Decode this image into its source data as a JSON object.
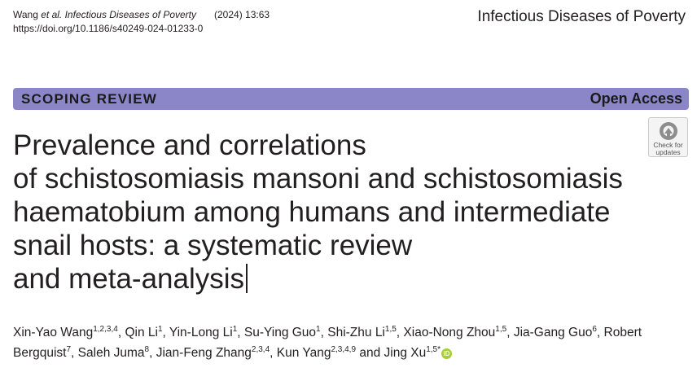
{
  "header": {
    "citation": "Wang et al. Infectious Diseases of Poverty",
    "citation_authors": "Wang ",
    "citation_etal": "et al.",
    "citation_journal": " Infectious Diseases of Poverty",
    "year_volume": "(2024) 13:63",
    "doi": "https://doi.org/10.1186/s40249-024-01233-0",
    "journal_name": "Infectious Diseases of Poverty"
  },
  "band": {
    "article_type": "SCOPING REVIEW",
    "access": "Open Access"
  },
  "check_updates": {
    "label_line1": "Check for",
    "label_line2": "updates"
  },
  "title_lines": [
    "Prevalence and correlations",
    "of schistosomiasis mansoni and schistosomiasis",
    "haematobium among humans and intermediate",
    "snail hosts: a systematic review",
    "and meta-analysis"
  ],
  "authors": [
    {
      "name": "Xin-Yao Wang",
      "aff": "1,2,3,4"
    },
    {
      "name": "Qin Li",
      "aff": "1"
    },
    {
      "name": "Yin-Long Li",
      "aff": "1"
    },
    {
      "name": "Su-Ying Guo",
      "aff": "1"
    },
    {
      "name": "Shi-Zhu Li",
      "aff": "1,5"
    },
    {
      "name": "Xiao-Nong Zhou",
      "aff": "1,5"
    },
    {
      "name": "Jia-Gang Guo",
      "aff": "6"
    },
    {
      "name": "Robert Bergquist",
      "aff": "7"
    },
    {
      "name": "Saleh Juma",
      "aff": "8"
    },
    {
      "name": "Jian-Feng Zhang",
      "aff": "2,3,4"
    },
    {
      "name": "Kun Yang",
      "aff": "2,3,4,9"
    },
    {
      "name": "Jing Xu",
      "aff": "1,5*"
    }
  ],
  "authors_conjunction": "and",
  "orcid_icon": "orcid-icon",
  "orcid_text": "iD",
  "band_color": "#8a86c7",
  "orcid_color": "#a6ce39"
}
